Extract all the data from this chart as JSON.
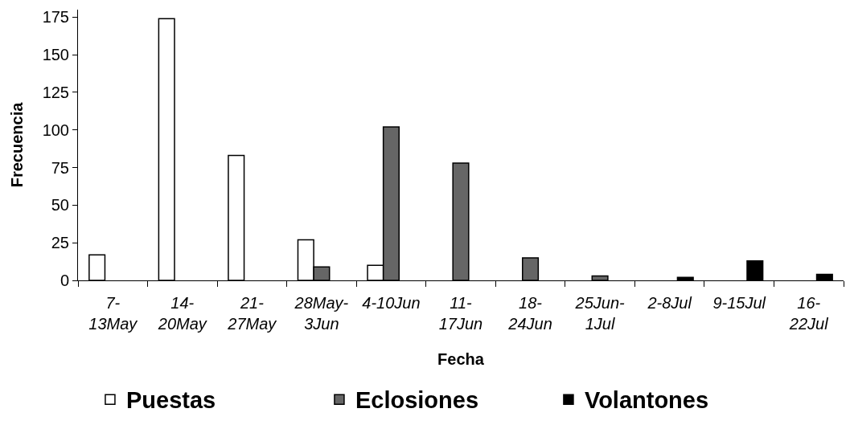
{
  "chart_data": {
    "type": "bar",
    "xlabel": "Fecha",
    "ylabel": "Frecuencia",
    "categories": [
      "7-13May",
      "14-20May",
      "21-27May",
      "28May-3Jun",
      "4-10Jun",
      "11-17Jun",
      "18-24Jun",
      "25Jun-1Jul",
      "2-8Jul",
      "9-15Jul",
      "16-22Jul"
    ],
    "series": [
      {
        "name": "Puestas",
        "color": "#ffffff",
        "values": [
          17,
          174,
          83,
          27,
          10,
          null,
          null,
          null,
          null,
          null,
          null
        ]
      },
      {
        "name": "Eclosiones",
        "color": "#666666",
        "values": [
          null,
          null,
          null,
          9,
          102,
          78,
          15,
          3,
          null,
          null,
          null
        ]
      },
      {
        "name": "Volantones",
        "color": "#000000",
        "values": [
          null,
          null,
          null,
          null,
          null,
          null,
          null,
          null,
          2,
          13,
          4
        ]
      }
    ],
    "ylim": [
      0,
      180
    ],
    "yticks": [
      0,
      25,
      50,
      75,
      100,
      125,
      150,
      175
    ],
    "grid": false,
    "legend": "bottom"
  }
}
